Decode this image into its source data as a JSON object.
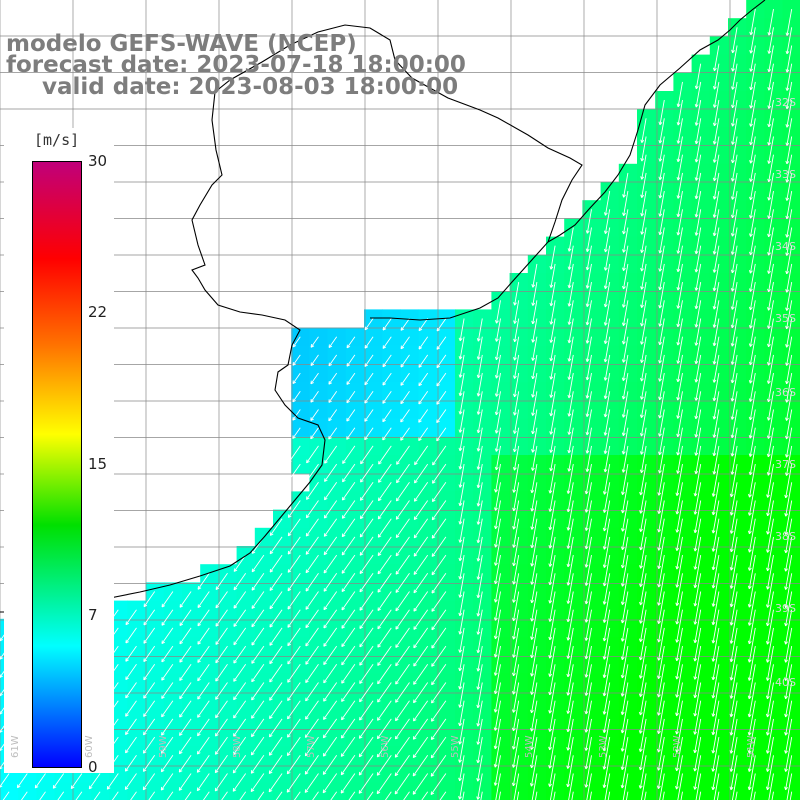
{
  "title": {
    "line1": "modelo GEFS-WAVE (NCEP)",
    "line2": "forecast date: 2023-07-18 18:00:00",
    "line3": "valid date: 2023-08-03 18:00:00"
  },
  "colorbar": {
    "unit": "[m/s]",
    "ticks": [
      "30",
      "22",
      "15",
      "7",
      "0"
    ],
    "tick_values": [
      30,
      22,
      15,
      7,
      0
    ],
    "colors": [
      "#c0007a",
      "#ff0000",
      "#ff7000",
      "#ffff00",
      "#00e000",
      "#00ffff",
      "#0000ff"
    ]
  },
  "lat_labels": [
    "32S",
    "33S",
    "34S",
    "35S",
    "36S",
    "37S",
    "38S",
    "39S",
    "40S"
  ],
  "lon_labels": [
    "61W",
    "60W",
    "59W",
    "58W",
    "57W",
    "56W",
    "55W",
    "54W",
    "53W",
    "52W",
    "51W"
  ],
  "colors": {
    "land": "#ffffff",
    "coastline": "#000000",
    "grid": "#888888",
    "arrow": "#ffffff"
  }
}
